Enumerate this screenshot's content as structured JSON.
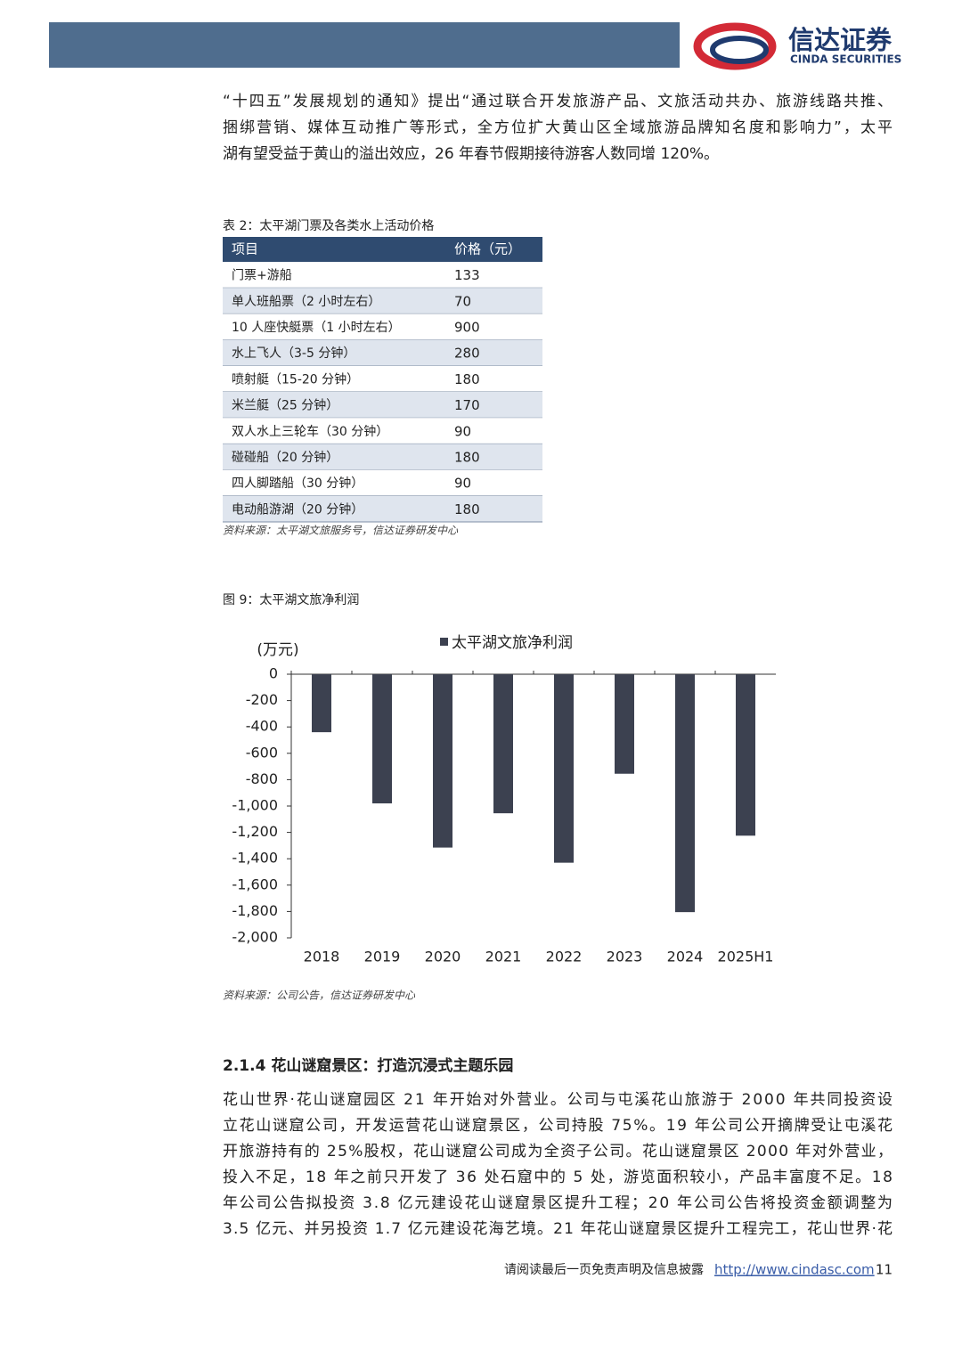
{
  "header": {
    "logo_cn": "信达证券",
    "logo_en": "CINDA SECURITIES"
  },
  "paragraph1": [
    "“十四五”发展规划的通知》提出“通过联合开发旅游产品、文旅活动共办、旅游线路共推、",
    "捆绑营销、媒体互动推广等形式，全方位扩大黄山区全域旅游品牌知名度和影响力”，太平",
    "湖有望受益于黄山的溢出效应，26 年春节假期接待游客人数同增 120%。"
  ],
  "table": {
    "caption": "表 2：太平湖门票及各类水上活动价格",
    "header": [
      "项目",
      "价格（元）"
    ],
    "rows": [
      [
        "门票+游船",
        133
      ],
      [
        "单人班船票（2 小时左右）",
        70
      ],
      [
        "10 人座快艇票（1 小时左右）",
        900
      ],
      [
        "水上飞人（3-5 分钟）",
        280
      ],
      [
        "喷射艇（15-20 分钟）",
        180
      ],
      [
        "米兰艇（25 分钟）",
        170
      ],
      [
        "双人水上三轮车（30 分钟）",
        90
      ],
      [
        "碰碰船（20 分钟）",
        180
      ],
      [
        "四人脚踏船（30 分钟）",
        90
      ],
      [
        "电动船游湖（20 分钟）",
        180
      ]
    ],
    "source": "资料来源：太平湖文旅服务号，信达证券研发中心"
  },
  "figure_caption": "图 9：太平湖文旅净利润",
  "chart_data": {
    "type": "bar",
    "y_label": "(万元)",
    "categories": [
      "2018",
      "2019",
      "2020",
      "2021",
      "2022",
      "2023",
      "2024",
      "2025H1"
    ],
    "series": [
      {
        "name": "太平湖文旅净利润",
        "color": "#3c4150",
        "values": [
          -440,
          -980,
          -1315,
          -1055,
          -1430,
          -755,
          -1805,
          -1225
        ]
      }
    ],
    "ylim": [
      -2000,
      0
    ],
    "yticks": [
      0,
      -200,
      -400,
      -600,
      -800,
      {
        "value": -1000,
        "label": "-1,000"
      },
      {
        "value": -1200,
        "label": "-1,200"
      },
      {
        "value": -1400,
        "label": "-1,400"
      },
      {
        "value": -1600,
        "label": "-1,600"
      },
      {
        "value": -1800,
        "label": "-1,800"
      },
      {
        "value": -2000,
        "label": "-2,000"
      }
    ]
  },
  "figure_source": "资料来源：公司公告，信达证券研发中心",
  "section_heading": "2.1.4 花山谜窟景区：打造沉浸式主题乐园",
  "paragraph2": [
    "花山世界·花山谜窟园区 21 年开始对外营业。公司与屯溪花山旅游于 2000 年共同投资设",
    "立花山谜窟公司，开发运营花山谜窟景区，公司持股 75%。19 年公司公开摘牌受让屯溪花",
    "开旅游持有的 25%股权，花山谜窟公司成为全资子公司。花山谜窟景区 2000 年对外营业，",
    "投入不足，18 年之前只开发了 36 处石窟中的 5 处，游览面积较小，产品丰富度不足。18",
    "年公司公告拟投资 3.8 亿元建设花山谜窟景区提升工程；20 年公司公告将投资金额调整为",
    "3.5 亿元、并另投资 1.7 亿元建设花海艺境。21 年花山谜窟景区提升工程完工，花山世界·花"
  ],
  "footer": {
    "disclaimer": "请阅读最后一页免责声明及信息披露",
    "url": "http://www.cindasc.com",
    "page": 11
  }
}
